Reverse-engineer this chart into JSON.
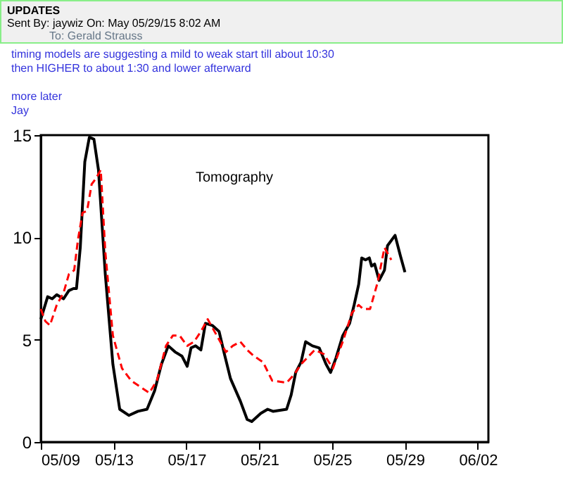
{
  "chart_data": {
    "type": "line",
    "title": "UPDATES",
    "annotations": [
      "Sent By: jaywiz  On: May 05/29/15 8:02 AM",
      "To: Gerald Strauss",
      "timing models are suggesting a mild to weak start till about 10:30",
      "then HIGHER to about 1:30 and lower afterward",
      "more later",
      "Jay",
      "Tomography"
    ],
    "series": [
      {
        "color": "#000000",
        "line_style": "solid",
        "x": [
          "--05-09T00:00",
          "--05-09T09:00",
          "--05-09T15:00",
          "--05-09T21:00",
          "--05-10T06:00",
          "--05-10T13:00",
          "--05-10T19:00",
          "--05-10T23:00",
          "--05-11T04:00",
          "--05-11T10:00",
          "--05-11T16:00",
          "--05-11T22:00",
          "--05-12T04:00",
          "--05-12T13:00",
          "--05-12T23:00",
          "--05-13T08:00",
          "--05-13T20:00",
          "--05-14T08:00",
          "--05-14T20:00",
          "--05-15T06:00",
          "--05-15T15:00",
          "--05-16T00:00",
          "--05-16T09:00",
          "--05-16T18:00",
          "--05-17T01:00",
          "--05-17T06:00",
          "--05-17T12:00",
          "--05-17T19:00",
          "--05-18T01:00",
          "--05-18T10:00",
          "--05-18T19:00",
          "--05-19T02:00",
          "--05-19T10:00",
          "--05-19T23:00",
          "--05-20T08:00",
          "--05-20T14:00",
          "--05-21T02:00",
          "--05-21T11:00",
          "--05-21T18:00",
          "--05-22T12:00",
          "--05-22T18:00",
          "--05-23T00:00",
          "--05-23T07:00",
          "--05-23T13:00",
          "--05-23T22:00",
          "--05-24T07:00",
          "--05-24T16:00",
          "--05-24T22:00",
          "--05-25T05:00",
          "--05-25T14:00",
          "--05-25T23:00",
          "--05-26T05:00",
          "--05-26T11:00",
          "--05-26T15:00",
          "--05-26T20:00",
          "--05-27T01:00",
          "--05-27T04:00",
          "--05-27T08:00",
          "--05-27T14:00",
          "--05-27T21:00",
          "--05-28T01:00",
          "--05-28T11:00",
          "--05-28T18:00",
          "--05-29T00:00"
        ],
        "values": [
          6.0,
          7.1,
          7.0,
          7.2,
          7.0,
          7.4,
          7.5,
          7.5,
          9.5,
          13.7,
          14.9,
          14.8,
          13.3,
          8.2,
          3.8,
          1.6,
          1.3,
          1.5,
          1.6,
          2.5,
          3.8,
          4.7,
          4.4,
          4.2,
          3.7,
          4.6,
          4.7,
          4.5,
          5.8,
          5.7,
          5.4,
          4.3,
          3.1,
          2.0,
          1.1,
          1.0,
          1.4,
          1.6,
          1.5,
          1.6,
          2.3,
          3.4,
          3.9,
          4.9,
          4.7,
          4.6,
          3.8,
          3.4,
          4.1,
          5.2,
          5.8,
          6.7,
          7.7,
          9.0,
          8.9,
          9.0,
          8.6,
          8.7,
          7.9,
          8.4,
          9.6,
          10.1,
          9.1,
          8.3
        ]
      },
      {
        "color": "#ff0000",
        "line_style": "dashed",
        "x": [
          "--05-09T00:00",
          "--05-09T06:00",
          "--05-09T12:00",
          "--05-09T21:00",
          "--05-10T06:00",
          "--05-10T13:00",
          "--05-10T20:00",
          "--05-11T01:00",
          "--05-11T07:00",
          "--05-11T13:00",
          "--05-11T19:00",
          "--05-12T01:00",
          "--05-12T07:00",
          "--05-12T13:00",
          "--05-12T23:00",
          "--05-13T11:00",
          "--05-13T23:00",
          "--05-14T11:00",
          "--05-14T23:00",
          "--05-15T09:00",
          "--05-15T21:00",
          "--05-16T06:00",
          "--05-16T15:00",
          "--05-17T01:00",
          "--05-17T10:00",
          "--05-17T19:00",
          "--05-18T04:00",
          "--05-18T16:00",
          "--05-19T04:00",
          "--05-19T13:00",
          "--05-19T23:00",
          "--05-20T08:00",
          "--05-20T17:00",
          "--05-21T05:00",
          "--05-21T17:00",
          "--05-22T12:00",
          "--05-22T22:00",
          "--05-23T07:00",
          "--05-24T01:00",
          "--05-24T13:00",
          "--05-25T01:00",
          "--05-25T14:00",
          "--05-26T02:00",
          "--05-26T11:00",
          "--05-26T17:00",
          "--05-27T02:00",
          "--05-27T12:00",
          "--05-27T21:00",
          "--05-28T06:00"
        ],
        "values": [
          6.5,
          5.9,
          5.7,
          6.7,
          7.3,
          8.2,
          8.4,
          9.9,
          11.2,
          11.3,
          12.6,
          12.9,
          13.3,
          9.3,
          5.2,
          3.6,
          3.0,
          2.7,
          2.4,
          3.0,
          4.7,
          5.2,
          5.2,
          4.7,
          4.9,
          5.4,
          6.0,
          5.2,
          4.4,
          4.7,
          4.9,
          4.5,
          4.2,
          3.9,
          3.0,
          2.9,
          3.3,
          3.8,
          4.5,
          4.3,
          3.6,
          4.9,
          6.3,
          6.7,
          6.5,
          6.5,
          7.8,
          9.5,
          8.9
        ]
      }
    ],
    "xlim": [
      "--05-09",
      "--06-02T14:00"
    ],
    "xticks": [
      {
        "value": "--05-09",
        "label": "05/09"
      },
      {
        "value": "--05-13",
        "label": "05/13"
      },
      {
        "value": "--05-17",
        "label": "05/17"
      },
      {
        "value": "--05-21",
        "label": "05/21"
      },
      {
        "value": "--05-25",
        "label": "05/25"
      },
      {
        "value": "--05-29",
        "label": "05/29"
      },
      {
        "value": "--06-02",
        "label": "06/02"
      }
    ],
    "ylim": [
      0,
      15
    ],
    "yticks": [
      0,
      5,
      10,
      15
    ]
  }
}
